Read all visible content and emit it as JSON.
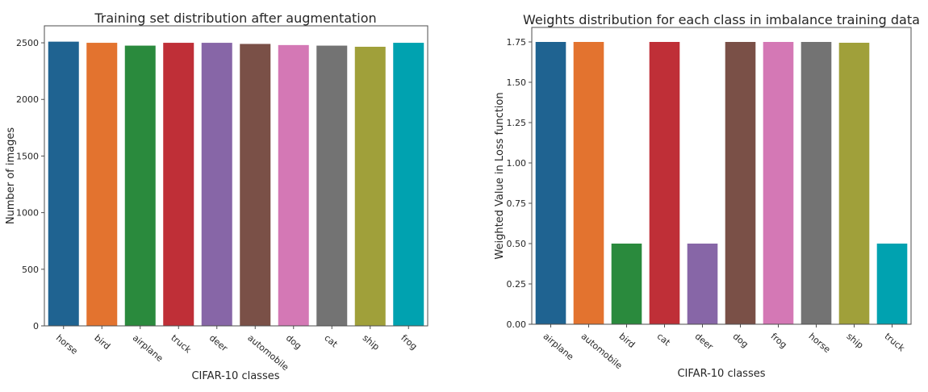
{
  "chart_data": [
    {
      "type": "bar",
      "title": "Training set distribution after augmentation",
      "xlabel": "CIFAR-10 classes",
      "ylabel": "Number of images",
      "ylim": [
        0,
        2650
      ],
      "yticks": [
        0,
        500,
        1000,
        1500,
        2000,
        2500
      ],
      "categories": [
        "horse",
        "bird",
        "airplane",
        "truck",
        "deer",
        "automobile",
        "dog",
        "cat",
        "ship",
        "frog"
      ],
      "values": [
        2510,
        2500,
        2475,
        2500,
        2500,
        2490,
        2480,
        2475,
        2465,
        2500
      ],
      "colors": [
        "#1f6391",
        "#e3732f",
        "#2a8a3d",
        "#bf2f37",
        "#8766a7",
        "#7a5047",
        "#d478b5",
        "#737373",
        "#a0a03a",
        "#00a2b0"
      ],
      "grid": false,
      "legend": "none"
    },
    {
      "type": "bar",
      "title": "Weights distribution for each class in imbalance training data",
      "xlabel": "CIFAR-10 classes",
      "ylabel": "Weighted Value in Loss function",
      "ylim": [
        0,
        1.84
      ],
      "yticks": [
        "0.00",
        "0.25",
        "0.50",
        "0.75",
        "1.00",
        "1.25",
        "1.50",
        "1.75"
      ],
      "categories": [
        "airplane",
        "automobile",
        "bird",
        "cat",
        "deer",
        "dog",
        "frog",
        "horse",
        "ship",
        "truck"
      ],
      "values": [
        1.75,
        1.75,
        0.5,
        1.75,
        0.5,
        1.75,
        1.75,
        1.75,
        1.745,
        0.5
      ],
      "colors": [
        "#1f6391",
        "#e3732f",
        "#2a8a3d",
        "#bf2f37",
        "#8766a7",
        "#7a5047",
        "#d478b5",
        "#737373",
        "#a0a03a",
        "#00a2b0"
      ],
      "grid": false,
      "legend": "none"
    }
  ]
}
